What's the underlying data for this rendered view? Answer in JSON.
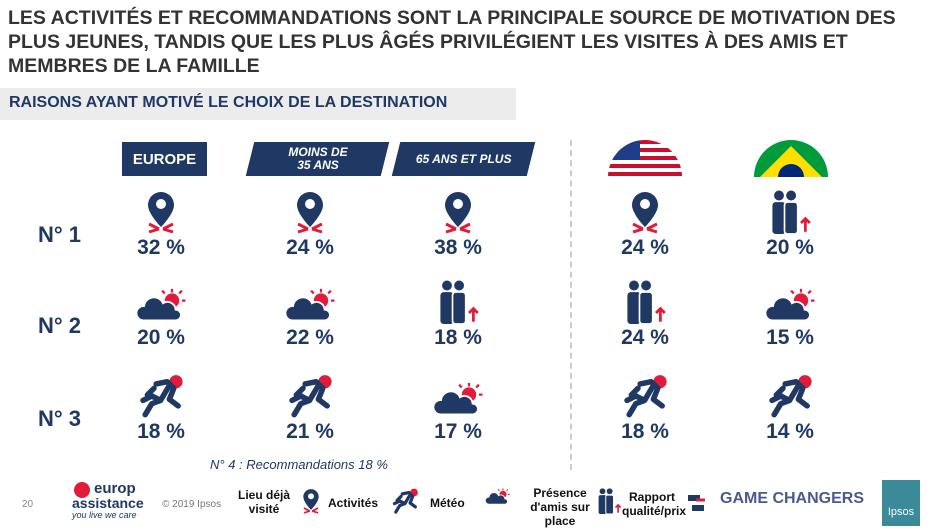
{
  "title": "LES ACTIVITÉS ET RECOMMANDATIONS SONT LA PRINCIPALE SOURCE DE MOTIVATION DES PLUS JEUNES, TANDIS QUE LES PLUS ÂGÉS PRIVILÉGIENT LES VISITES À DES AMIS ET MEMBRES DE LA FAMILLE",
  "subtitle": "RAISONS AYANT MOTIVÉ LE CHOIX DE LA DESTINATION",
  "columns": [
    {
      "label": "EUROPE",
      "cells": [
        {
          "icon": "pin",
          "value": "32 %"
        },
        {
          "icon": "weather",
          "value": "20 %"
        },
        {
          "icon": "runner",
          "value": "18 %"
        }
      ]
    },
    {
      "label": "MOINS DE 35 ANS",
      "cells": [
        {
          "icon": "pin",
          "value": "24 %"
        },
        {
          "icon": "weather",
          "value": "22 %"
        },
        {
          "icon": "runner",
          "value": "21 %"
        }
      ]
    },
    {
      "label": "65 ANS ET PLUS",
      "cells": [
        {
          "icon": "pin",
          "value": "38 %"
        },
        {
          "icon": "people",
          "value": "18 %"
        },
        {
          "icon": "weather",
          "value": "17 %"
        }
      ]
    },
    {
      "label": "USA",
      "cells": [
        {
          "icon": "pin",
          "value": "24 %"
        },
        {
          "icon": "people",
          "value": "24 %"
        },
        {
          "icon": "runner",
          "value": "18 %"
        }
      ]
    },
    {
      "label": "Brésil",
      "cells": [
        {
          "icon": "people",
          "value": "20 %"
        },
        {
          "icon": "weather",
          "value": "15 %"
        },
        {
          "icon": "runner",
          "value": "14 %"
        }
      ]
    }
  ],
  "rows": [
    "N° 1",
    "N° 2",
    "N° 3"
  ],
  "note": "N° 4 : Recommandations 18 %",
  "footer": {
    "page": "20",
    "brand1": "europ",
    "brand2": "assistance",
    "tagline": "you live we care",
    "copyright": "© 2019 Ipsos",
    "legend": [
      "Lieu déjà visité",
      "Activités",
      "Météo",
      "Présence d'amis sur place",
      "Rapport qualité/prix"
    ],
    "game": "GAME CHANGERS",
    "ipsos": "Ipsos"
  },
  "colors": {
    "navy": "#1f3864",
    "red": "#e31b3a"
  }
}
